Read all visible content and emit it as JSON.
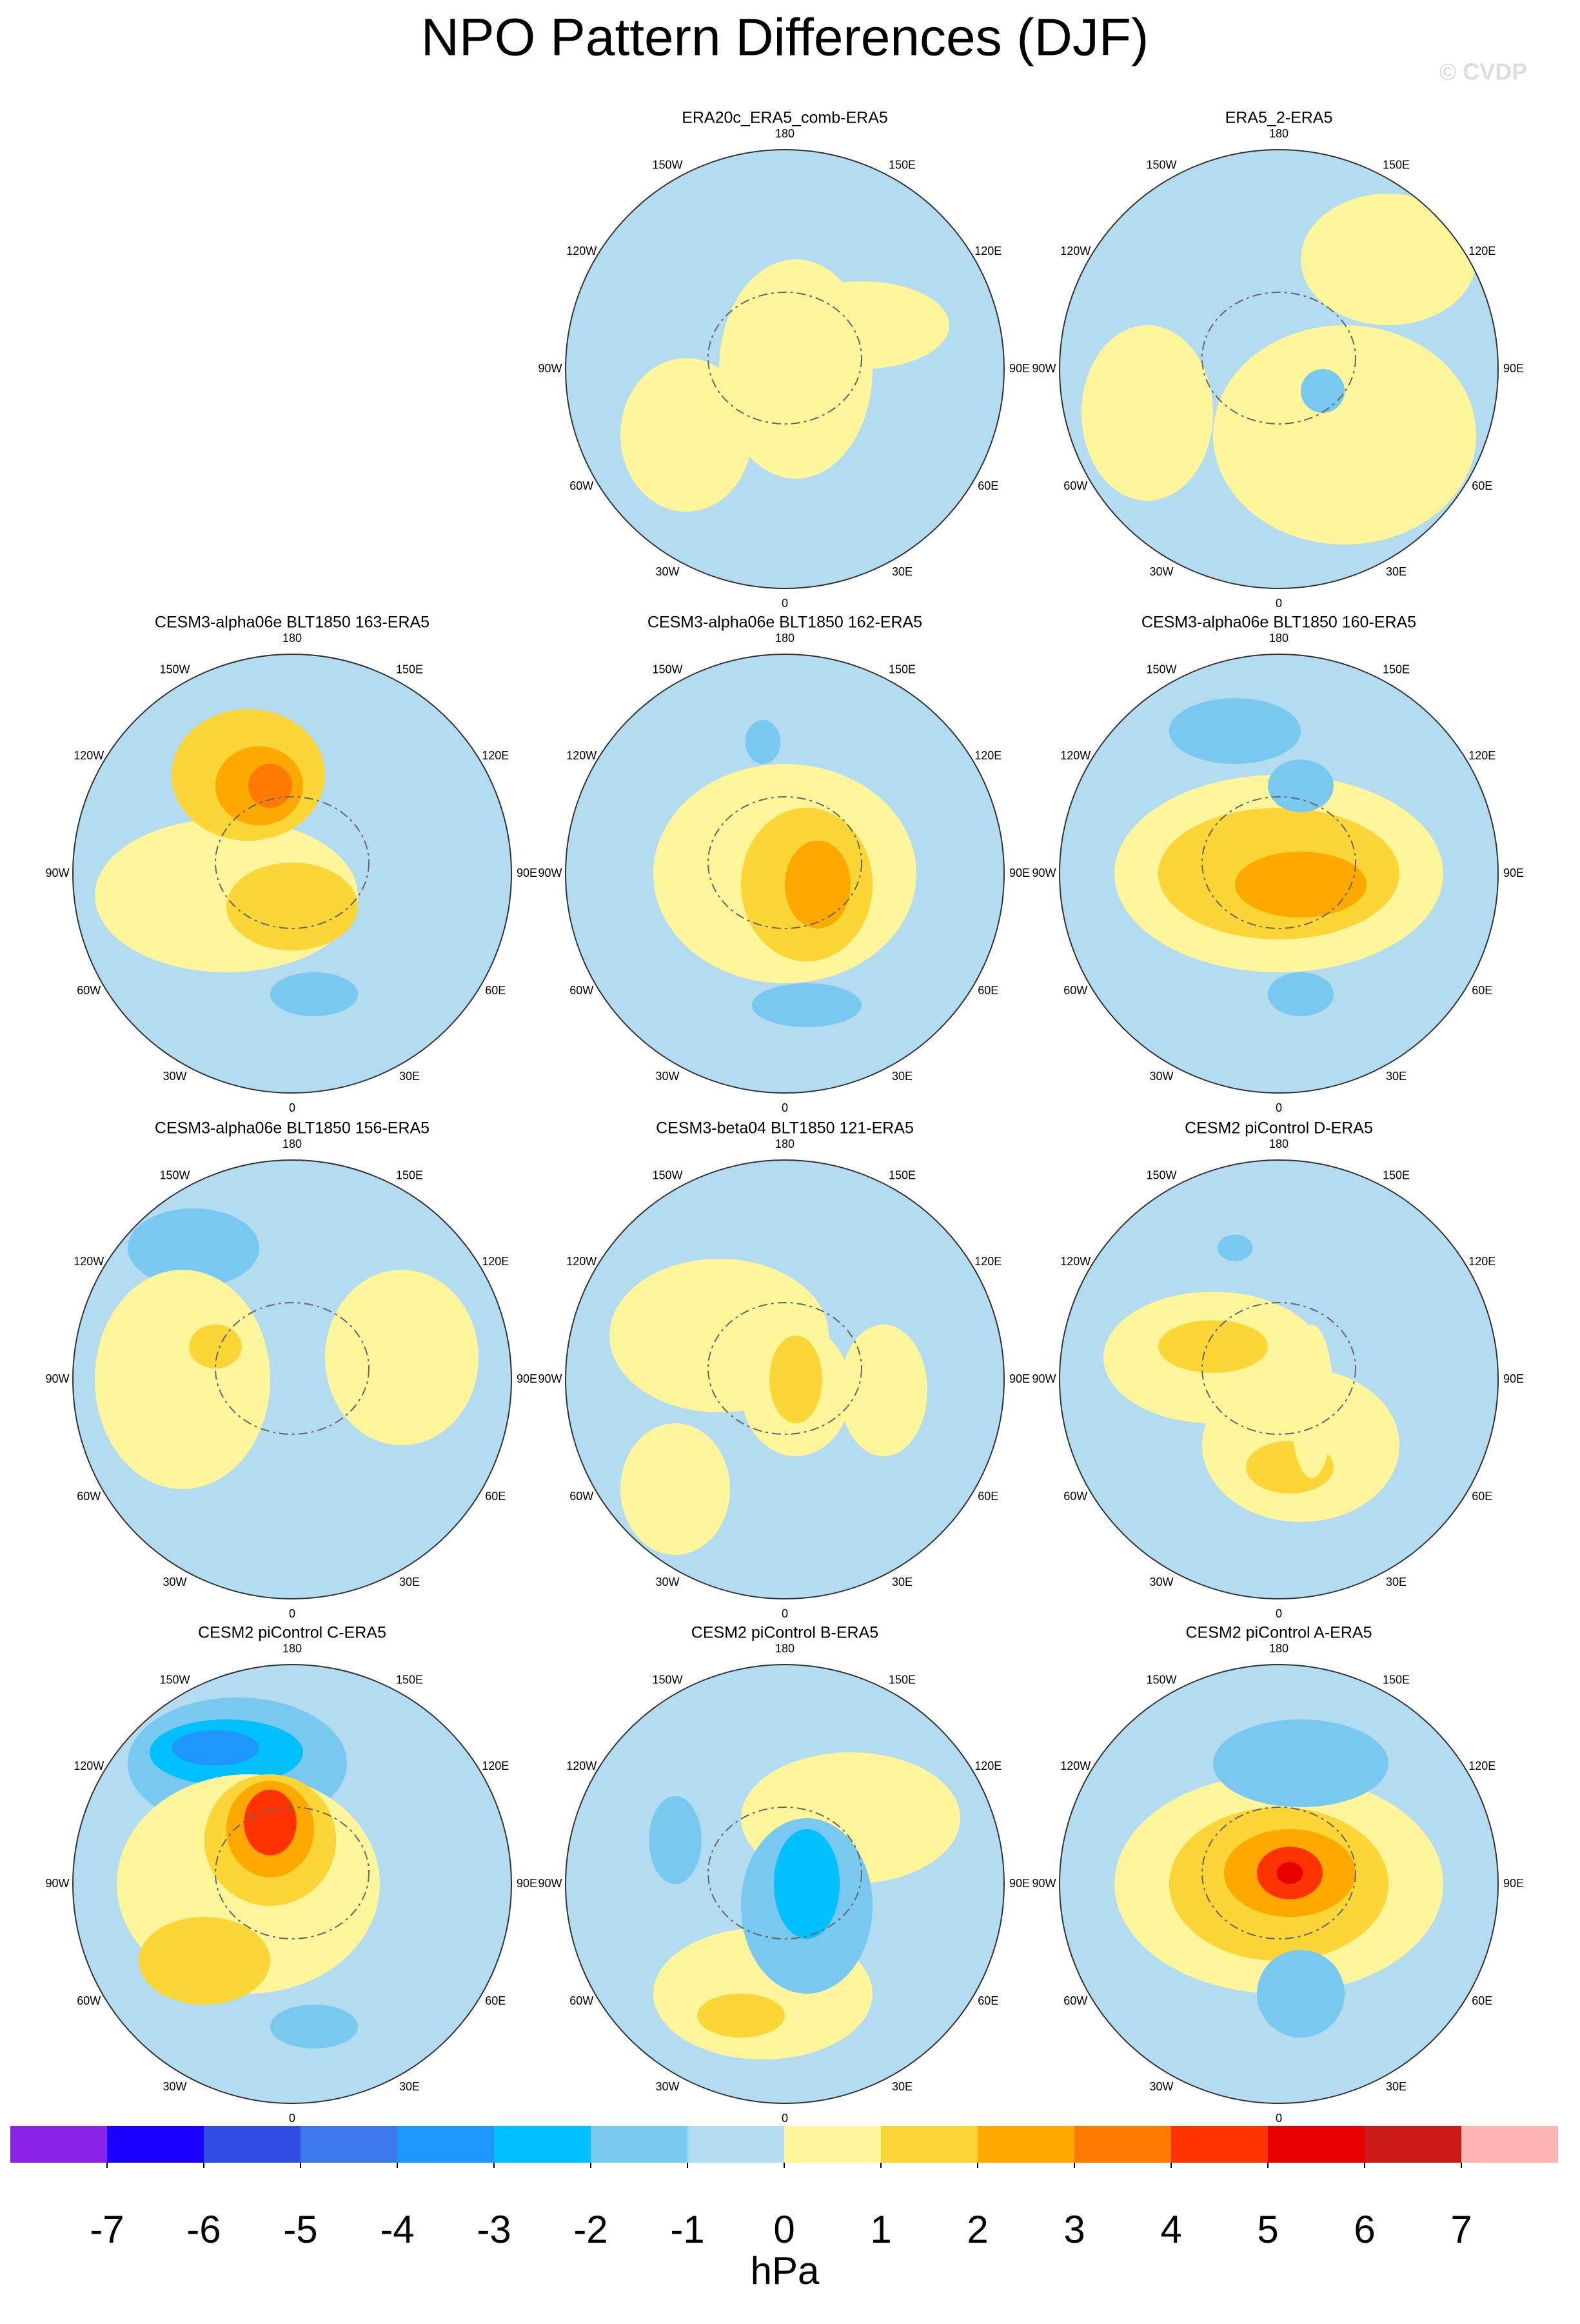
{
  "title": "NPO Pattern Differences (DJF)",
  "watermark": "© CVDP",
  "longitude_labels": [
    "180",
    "150E",
    "120E",
    "90E",
    "60E",
    "30E",
    "0",
    "30W",
    "60W",
    "90W",
    "120W",
    "150W"
  ],
  "panels": [
    {
      "title": "ERA20c_ERA5_comb-ERA5"
    },
    {
      "title": "ERA5_2-ERA5"
    },
    {
      "title": "CESM3-alpha06e BLT1850 163-ERA5"
    },
    {
      "title": "CESM3-alpha06e BLT1850 162-ERA5"
    },
    {
      "title": "CESM3-alpha06e BLT1850 160-ERA5"
    },
    {
      "title": "CESM3-alpha06e BLT1850 156-ERA5"
    },
    {
      "title": "CESM3-beta04 BLT1850 121-ERA5"
    },
    {
      "title": "CESM2 piControl D-ERA5"
    },
    {
      "title": "CESM2 piControl C-ERA5"
    },
    {
      "title": "CESM2 piControl B-ERA5"
    },
    {
      "title": "CESM2 piControl A-ERA5"
    }
  ],
  "colorbar": {
    "ticks": [
      -7,
      -6,
      -5,
      -4,
      -3,
      -2,
      -1,
      0,
      1,
      2,
      3,
      4,
      5,
      6,
      7
    ],
    "colors": [
      "#8b22e8",
      "#1a00ff",
      "#2f4de0",
      "#3a78ec",
      "#1e96ff",
      "#00c0ff",
      "#78c8f0",
      "#b4dcf0",
      "#fff59a",
      "#fcd537",
      "#ffa800",
      "#ff7a00",
      "#ff3300",
      "#e60000",
      "#cc1a1a",
      "#ffb4b4"
    ],
    "unit": "hPa"
  }
}
